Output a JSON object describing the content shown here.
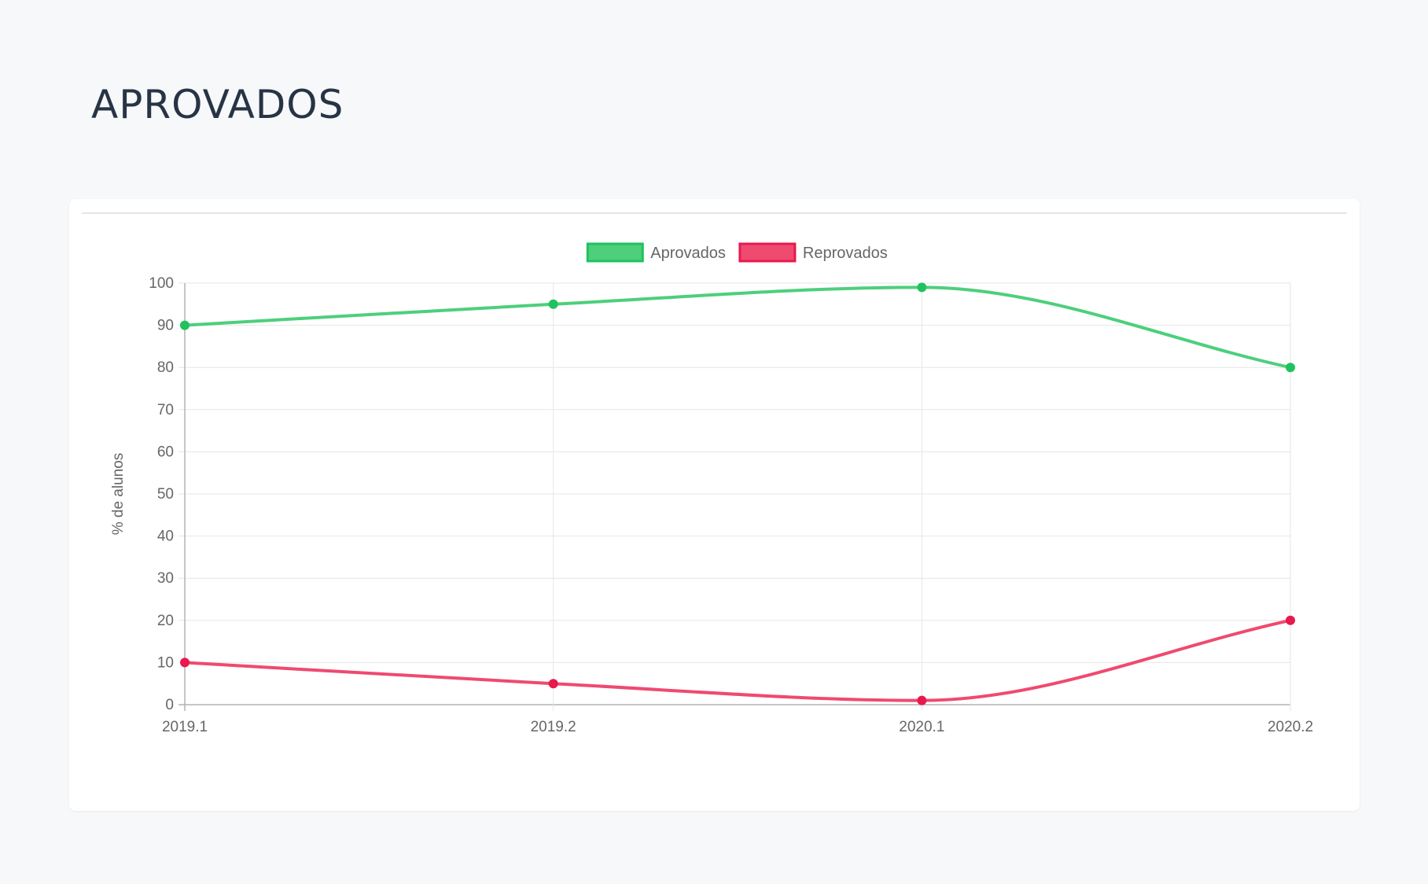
{
  "page": {
    "title": "APROVADOS"
  },
  "chart_data": {
    "type": "line",
    "title": "",
    "xlabel": "",
    "ylabel": "% de alunos",
    "ylim": [
      0,
      100
    ],
    "yticks": [
      0,
      10,
      20,
      30,
      40,
      50,
      60,
      70,
      80,
      90,
      100
    ],
    "categories": [
      "2019.1",
      "2019.2",
      "2020.1",
      "2020.2"
    ],
    "grid": true,
    "legend_position": "top",
    "series": [
      {
        "name": "Aprovados",
        "values": [
          90,
          95,
          99,
          80
        ],
        "color": "#21c25e",
        "fill": "#4dcf7c"
      },
      {
        "name": "Reprovados",
        "values": [
          10,
          5,
          1,
          20
        ],
        "color": "#e8194d",
        "fill": "#ef4a70"
      }
    ]
  }
}
